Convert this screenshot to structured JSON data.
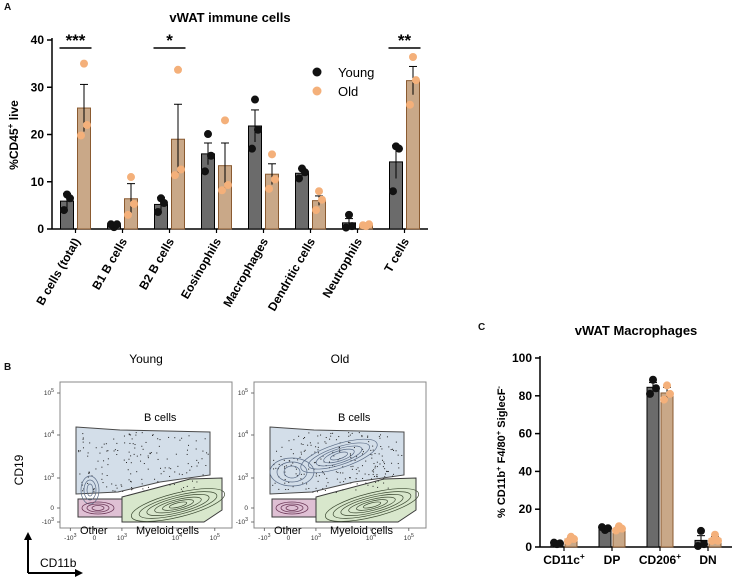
{
  "panel_labels": {
    "a": "A",
    "b": "B",
    "c": "C"
  },
  "colors": {
    "young": "#6b6b6b",
    "young_dot": "#111111",
    "old": "#c9a888",
    "old_dot": "#f4b07a",
    "old_edge": "#8a5a30"
  },
  "chart_data": [
    {
      "id": "panelA",
      "type": "bar",
      "title": "vWAT immune cells",
      "ylabel": "%CD45+ live",
      "ylabel_main": "%CD45",
      "ylabel_sup": "+",
      "ylabel_tail": " live",
      "ylim": [
        0,
        40
      ],
      "yticks": [
        "0",
        "10",
        "20",
        "30",
        "40"
      ],
      "categories": [
        "B cells (total)",
        "B1 B cells",
        "B2 B cells",
        "Eosinophils",
        "Macrophages",
        "Dendritic cells",
        "Neutrophils",
        "T cells"
      ],
      "legend": [
        "Young",
        "Old"
      ],
      "series": [
        {
          "name": "Young",
          "values": [
            5.9,
            0.8,
            5.2,
            15.9,
            21.8,
            11.8,
            1.3,
            14.2
          ],
          "errors": [
            1.6,
            0.3,
            1.5,
            2.3,
            3.4,
            1.0,
            0.9,
            3.5
          ],
          "points": [
            [
              7.3,
              4.0,
              6.5
            ],
            [
              0.4,
              1.0,
              1.0
            ],
            [
              6.5,
              3.6,
              5.5
            ],
            [
              20.1,
              12.2,
              15.5
            ],
            [
              27.4,
              17.0,
              21.0
            ],
            [
              12.8,
              10.7,
              12.0
            ],
            [
              3.0,
              0.3,
              0.6
            ],
            [
              17.5,
              8.0,
              17.0
            ]
          ]
        },
        {
          "name": "Old",
          "values": [
            25.6,
            6.4,
            19.0,
            13.4,
            11.6,
            6.0,
            0.8,
            31.4
          ],
          "errors": [
            5.0,
            3.2,
            7.4,
            4.8,
            2.2,
            1.0,
            0.2,
            3.0
          ],
          "points": [
            [
              35.0,
              19.8,
              22.0
            ],
            [
              11.0,
              3.0,
              5.3
            ],
            [
              33.7,
              11.4,
              12.6
            ],
            [
              23.0,
              8.2,
              9.3
            ],
            [
              15.8,
              8.5,
              10.5
            ],
            [
              8.0,
              4.0,
              6.2
            ],
            [
              0.6,
              0.8,
              1.0
            ],
            [
              36.4,
              26.3,
              31.5
            ]
          ]
        }
      ],
      "significance": [
        {
          "category": "B cells (total)",
          "label": "***"
        },
        {
          "category": "B2 B cells",
          "label": "*"
        },
        {
          "category": "T cells",
          "label": "**"
        }
      ]
    },
    {
      "id": "panelC",
      "type": "bar",
      "title": "vWAT Macrophages",
      "ylabel": "% CD11b+ F4/80+ SiglecF-",
      "ylim": [
        0,
        100
      ],
      "yticks": [
        "0",
        "20",
        "40",
        "60",
        "80",
        "100"
      ],
      "categories": [
        "CD11c+",
        "DP",
        "CD206+",
        "DN"
      ],
      "cat_main": [
        "CD11c",
        "DP",
        "CD206",
        "DN"
      ],
      "cat_sup": [
        "+",
        "",
        "+",
        ""
      ],
      "series": [
        {
          "name": "Young",
          "values": [
            1.9,
            9.8,
            84.5,
            3.5
          ],
          "errors": [
            0.4,
            0.8,
            2.5,
            2.5
          ],
          "points": [
            [
              1.5,
              2.3,
              1.9
            ],
            [
              9.0,
              10.5,
              9.9
            ],
            [
              88.5,
              81.0,
              84.0
            ],
            [
              8.5,
              0.5,
              1.5
            ]
          ]
        },
        {
          "name": "Old",
          "values": [
            4.2,
            9.8,
            81.5,
            4.3
          ],
          "errors": [
            0.8,
            1.2,
            3.0,
            1.2
          ],
          "points": [
            [
              5.4,
              3.0,
              4.2
            ],
            [
              11.0,
              8.7,
              9.7
            ],
            [
              85.5,
              78.0,
              81.0
            ],
            [
              6.5,
              3.2,
              3.3
            ]
          ]
        }
      ]
    }
  ],
  "flow": {
    "axis_y": "CD19",
    "axis_x": "CD11b",
    "plots": [
      {
        "title": "Young",
        "gate_b": "B cells",
        "gate_other": "Other",
        "gate_myeloid": "Myeloid cells"
      },
      {
        "title": "Old",
        "gate_b": "B cells",
        "gate_other": "Other",
        "gate_myeloid": "Myeloid cells"
      }
    ],
    "y_ticks": [
      "10^5",
      "10^4",
      "10^3",
      "0",
      "-10^3"
    ],
    "x_ticks": [
      "-10^3",
      "0",
      "10^3",
      "10^4",
      "10^5"
    ]
  }
}
